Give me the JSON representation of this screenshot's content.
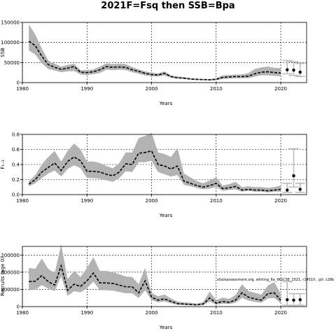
{
  "title": "2021F=Fsq then SSB=Bpa",
  "annotation": "stockassessment.org, whiting_6a_WGCSE_2021, r14510 , git: c28b",
  "colors": {
    "band": "#b3b3b3",
    "line": "#000000",
    "forecast": "#b8b8b8"
  },
  "chart_data": [
    {
      "type": "line",
      "xlabel": "Years",
      "ylabel": "SSB",
      "xlim": [
        1980,
        2024
      ],
      "ylim": [
        0,
        150000
      ],
      "x_ticks": [
        1980,
        1990,
        2000,
        2010,
        2020
      ],
      "y_ticks": [
        0,
        50000,
        100000,
        150000
      ],
      "grid": true,
      "series": [
        {
          "x": [
            1981,
            1982,
            1983,
            1984,
            1985,
            1986,
            1987,
            1988,
            1989,
            1990,
            1991,
            1992,
            1993,
            1994,
            1995,
            1996,
            1997,
            1998,
            1999,
            2000,
            2001,
            2002,
            2003,
            2004,
            2005,
            2006,
            2007,
            2008,
            2009,
            2010,
            2011,
            2012,
            2013,
            2014,
            2015,
            2016,
            2017,
            2018,
            2019,
            2020
          ],
          "values": [
            103000,
            92000,
            66000,
            45000,
            38000,
            33000,
            36000,
            40000,
            26000,
            25000,
            27000,
            32000,
            40000,
            38000,
            39000,
            38000,
            32000,
            28000,
            23000,
            20000,
            19000,
            23000,
            15000,
            12000,
            11000,
            9000,
            8000,
            7500,
            7000,
            8000,
            13000,
            14000,
            15000,
            15000,
            16000,
            22000,
            26000,
            27000,
            25000,
            24000
          ],
          "lower": [
            80000,
            70000,
            48000,
            34000,
            30000,
            26000,
            28000,
            29000,
            20000,
            19000,
            21000,
            24000,
            32000,
            31000,
            32000,
            31000,
            26000,
            22000,
            18000,
            16000,
            15000,
            18000,
            12000,
            10000,
            9000,
            7500,
            6500,
            6000,
            5500,
            6000,
            9000,
            10000,
            11000,
            11000,
            11000,
            15000,
            18000,
            18000,
            17000,
            16000
          ],
          "upper": [
            145000,
            120000,
            85000,
            55000,
            47000,
            40000,
            44000,
            47000,
            31000,
            31000,
            33000,
            40000,
            48000,
            46000,
            47000,
            46000,
            39000,
            33000,
            28000,
            25000,
            23000,
            28000,
            18000,
            15000,
            14000,
            11000,
            10000,
            9000,
            9000,
            11000,
            18000,
            19000,
            20000,
            20000,
            24000,
            34000,
            38000,
            40000,
            37000,
            36000
          ]
        },
        {
          "name": "forecast",
          "x": [
            2021,
            2022,
            2023
          ],
          "values": [
            32000,
            31000,
            26000
          ],
          "lower": [
            22000,
            18000,
            15000
          ],
          "upper": [
            55000,
            52000,
            48000
          ]
        }
      ]
    },
    {
      "type": "line",
      "xlabel": "Years",
      "ylabel": "F₁₋₃",
      "xlim": [
        1980,
        2024
      ],
      "ylim": [
        0,
        0.8
      ],
      "x_ticks": [
        1980,
        1990,
        2000,
        2010,
        2020
      ],
      "y_ticks": [
        0,
        0.2,
        0.4,
        0.6,
        0.8
      ],
      "y_tick_labels": [
        "0.0",
        "0.2",
        "0.4",
        "0.6",
        "0.8"
      ],
      "grid": true,
      "series": [
        {
          "x": [
            1981,
            1982,
            1983,
            1984,
            1985,
            1986,
            1987,
            1988,
            1989,
            1990,
            1991,
            1992,
            1993,
            1994,
            1995,
            1996,
            1997,
            1998,
            1999,
            2000,
            2001,
            2002,
            2003,
            2004,
            2005,
            2006,
            2007,
            2008,
            2009,
            2010,
            2011,
            2012,
            2013,
            2014,
            2015,
            2016,
            2017,
            2018,
            2019,
            2020
          ],
          "values": [
            0.14,
            0.2,
            0.3,
            0.36,
            0.42,
            0.32,
            0.44,
            0.5,
            0.45,
            0.31,
            0.31,
            0.3,
            0.27,
            0.25,
            0.3,
            0.41,
            0.4,
            0.55,
            0.56,
            0.58,
            0.4,
            0.38,
            0.34,
            0.38,
            0.18,
            0.15,
            0.12,
            0.1,
            0.12,
            0.15,
            0.08,
            0.09,
            0.11,
            0.06,
            0.07,
            0.06,
            0.06,
            0.05,
            0.06,
            0.07
          ],
          "lower": [
            0.11,
            0.15,
            0.22,
            0.28,
            0.32,
            0.24,
            0.34,
            0.39,
            0.35,
            0.22,
            0.22,
            0.21,
            0.19,
            0.17,
            0.22,
            0.31,
            0.3,
            0.43,
            0.43,
            0.45,
            0.3,
            0.27,
            0.24,
            0.26,
            0.13,
            0.11,
            0.09,
            0.07,
            0.08,
            0.1,
            0.05,
            0.06,
            0.07,
            0.04,
            0.05,
            0.04,
            0.04,
            0.03,
            0.04,
            0.04
          ],
          "upper": [
            0.18,
            0.26,
            0.4,
            0.5,
            0.58,
            0.44,
            0.58,
            0.68,
            0.6,
            0.44,
            0.44,
            0.42,
            0.38,
            0.35,
            0.42,
            0.56,
            0.56,
            0.75,
            0.78,
            0.82,
            0.56,
            0.54,
            0.5,
            0.62,
            0.28,
            0.23,
            0.18,
            0.15,
            0.19,
            0.23,
            0.12,
            0.14,
            0.17,
            0.1,
            0.11,
            0.1,
            0.1,
            0.09,
            0.1,
            0.12
          ]
        },
        {
          "name": "forecast",
          "x": [
            2021,
            2022,
            2023
          ],
          "values": [
            0.06,
            0.25,
            0.07
          ],
          "lower": [
            0.03,
            0.1,
            0.03
          ],
          "upper": [
            0.15,
            0.61,
            0.15
          ]
        }
      ]
    },
    {
      "type": "line",
      "xlabel": "Years",
      "ylabel": "Recruits (age 0)",
      "xlim": [
        1980,
        2024
      ],
      "ylim": [
        0,
        1400000
      ],
      "x_ticks": [
        1980,
        1990,
        2000,
        2010,
        2020
      ],
      "y_ticks": [
        0,
        400000,
        800000,
        1200000
      ],
      "y_tick_labels": [
        "0",
        "400000",
        "800000",
        "1200000"
      ],
      "grid": true,
      "series": [
        {
          "x": [
            1981,
            1982,
            1983,
            1984,
            1985,
            1986,
            1987,
            1988,
            1989,
            1990,
            1991,
            1992,
            1993,
            1994,
            1995,
            1996,
            1997,
            1998,
            1999,
            2000,
            2001,
            2002,
            2003,
            2004,
            2005,
            2006,
            2007,
            2008,
            2009,
            2010,
            2011,
            2012,
            2013,
            2014,
            2015,
            2016,
            2017,
            2018,
            2019,
            2020
          ],
          "values": [
            580000,
            590000,
            720000,
            580000,
            500000,
            950000,
            380000,
            520000,
            470000,
            600000,
            780000,
            550000,
            550000,
            540000,
            500000,
            460000,
            460000,
            320000,
            600000,
            220000,
            150000,
            180000,
            120000,
            70000,
            60000,
            50000,
            40000,
            60000,
            200000,
            80000,
            120000,
            100000,
            150000,
            320000,
            220000,
            180000,
            150000,
            300000,
            320000,
            150000
          ],
          "lower": [
            380000,
            390000,
            500000,
            420000,
            360000,
            700000,
            250000,
            360000,
            330000,
            430000,
            580000,
            380000,
            380000,
            370000,
            340000,
            310000,
            310000,
            200000,
            380000,
            150000,
            100000,
            120000,
            80000,
            40000,
            35000,
            30000,
            25000,
            35000,
            120000,
            45000,
            70000,
            60000,
            90000,
            200000,
            140000,
            110000,
            90000,
            190000,
            200000,
            80000
          ],
          "upper": [
            900000,
            880000,
            1120000,
            880000,
            780000,
            1450000,
            640000,
            830000,
            690000,
            900000,
            1150000,
            830000,
            830000,
            800000,
            750000,
            700000,
            690000,
            520000,
            900000,
            320000,
            240000,
            280000,
            190000,
            120000,
            100000,
            90000,
            70000,
            110000,
            350000,
            150000,
            210000,
            180000,
            270000,
            520000,
            360000,
            320000,
            280000,
            490000,
            570000,
            300000
          ]
        },
        {
          "name": "forecast",
          "x": [
            2021,
            2022,
            2023
          ],
          "values": [
            160000,
            150000,
            160000
          ],
          "lower": [
            30000,
            25000,
            30000
          ],
          "upper": [
            580000,
            300000,
            300000
          ]
        }
      ]
    }
  ]
}
